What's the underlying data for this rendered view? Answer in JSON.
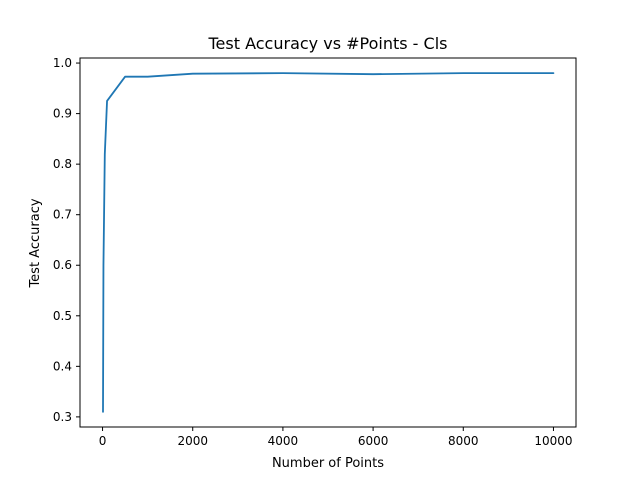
{
  "chart_data": {
    "type": "line",
    "title": "Test Accuracy vs #Points - Cls",
    "xlabel": "Number of Points",
    "ylabel": "Test Accuracy",
    "xlim": [
      -500,
      10500
    ],
    "ylim": [
      0.28,
      1.01
    ],
    "xticks": [
      0,
      2000,
      4000,
      6000,
      8000,
      10000
    ],
    "yticks": [
      0.3,
      0.4,
      0.5,
      0.6,
      0.7,
      0.8,
      0.9,
      1.0
    ],
    "xtick_labels": [
      "0",
      "2000",
      "4000",
      "6000",
      "8000",
      "10000"
    ],
    "ytick_labels": [
      "0.3",
      "0.4",
      "0.5",
      "0.6",
      "0.7",
      "0.8",
      "0.9",
      "1.0"
    ],
    "grid": false,
    "color": "#1f77b4",
    "series": [
      {
        "x": [
          10,
          20,
          50,
          100,
          500,
          1000,
          2000,
          4000,
          6000,
          8000,
          10000
        ],
        "y": [
          0.31,
          0.6,
          0.82,
          0.925,
          0.973,
          0.973,
          0.979,
          0.98,
          0.978,
          0.98,
          0.98
        ]
      }
    ]
  }
}
